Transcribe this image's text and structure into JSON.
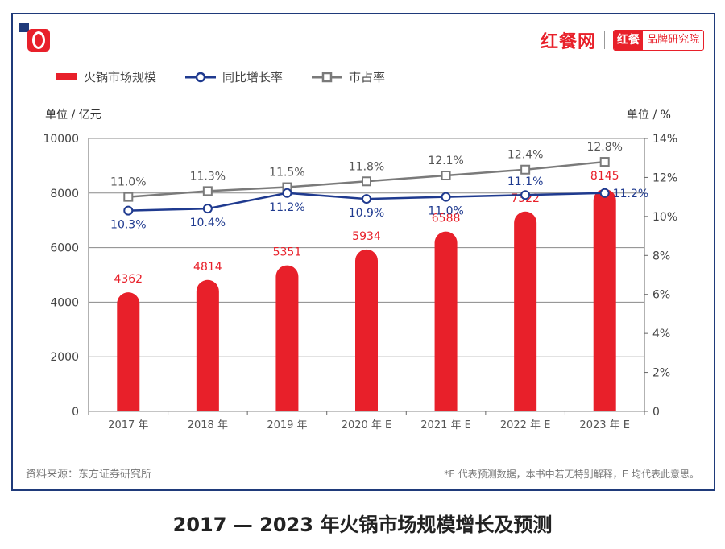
{
  "header": {
    "brand_main": "红餐网",
    "brand_box_a": "红餐",
    "brand_box_b": "品牌研究院"
  },
  "legend": {
    "bar": "火锅市场规模",
    "growth": "同比增长率",
    "share": "市占率"
  },
  "units": {
    "left": "单位 / 亿元",
    "right": "单位 / %"
  },
  "colors": {
    "bar": "#e8202a",
    "growth": "#1f3a8f",
    "share": "#7a7a7a",
    "frame": "#1f3a7a"
  },
  "footer": {
    "source": "资料来源：东方证券研究所",
    "note": "*E 代表预测数据，本书中若无特别解释，E 均代表此意思。",
    "title": "2017 — 2023 年火锅市场规模增长及预测"
  },
  "chart_data": {
    "type": "bar",
    "categories": [
      "2017 年",
      "2018 年",
      "2019 年",
      "2020 年 E",
      "2021 年 E",
      "2022 年 E",
      "2023 年 E"
    ],
    "series": [
      {
        "name": "火锅市场规模",
        "type": "bar",
        "axis": "left",
        "values": [
          4362,
          4814,
          5351,
          5934,
          6588,
          7322,
          8145
        ],
        "labels": [
          "4362",
          "4814",
          "5351",
          "5934",
          "6588",
          "7322",
          "8145"
        ]
      },
      {
        "name": "同比增长率",
        "type": "line",
        "axis": "right",
        "values": [
          10.3,
          10.4,
          11.2,
          10.9,
          11.0,
          11.1,
          11.2
        ],
        "labels": [
          "10.3%",
          "10.4%",
          "11.2%",
          "10.9%",
          "11.0%",
          "11.1%",
          "11.2%"
        ]
      },
      {
        "name": "市占率",
        "type": "line",
        "axis": "right",
        "values": [
          11.0,
          11.3,
          11.5,
          11.8,
          12.1,
          12.4,
          12.8
        ],
        "labels": [
          "11.0%",
          "11.3%",
          "11.5%",
          "11.8%",
          "12.1%",
          "12.4%",
          "12.8%"
        ]
      }
    ],
    "ylim_left": [
      0,
      10000
    ],
    "yticks_left": [
      "0",
      "2000",
      "4000",
      "6000",
      "8000",
      "10000"
    ],
    "ylim_right": [
      0,
      14
    ],
    "yticks_right": [
      "0",
      "2%",
      "4%",
      "6%",
      "8%",
      "10%",
      "12%",
      "14%"
    ],
    "grid": true,
    "legend_position": "top-left"
  }
}
